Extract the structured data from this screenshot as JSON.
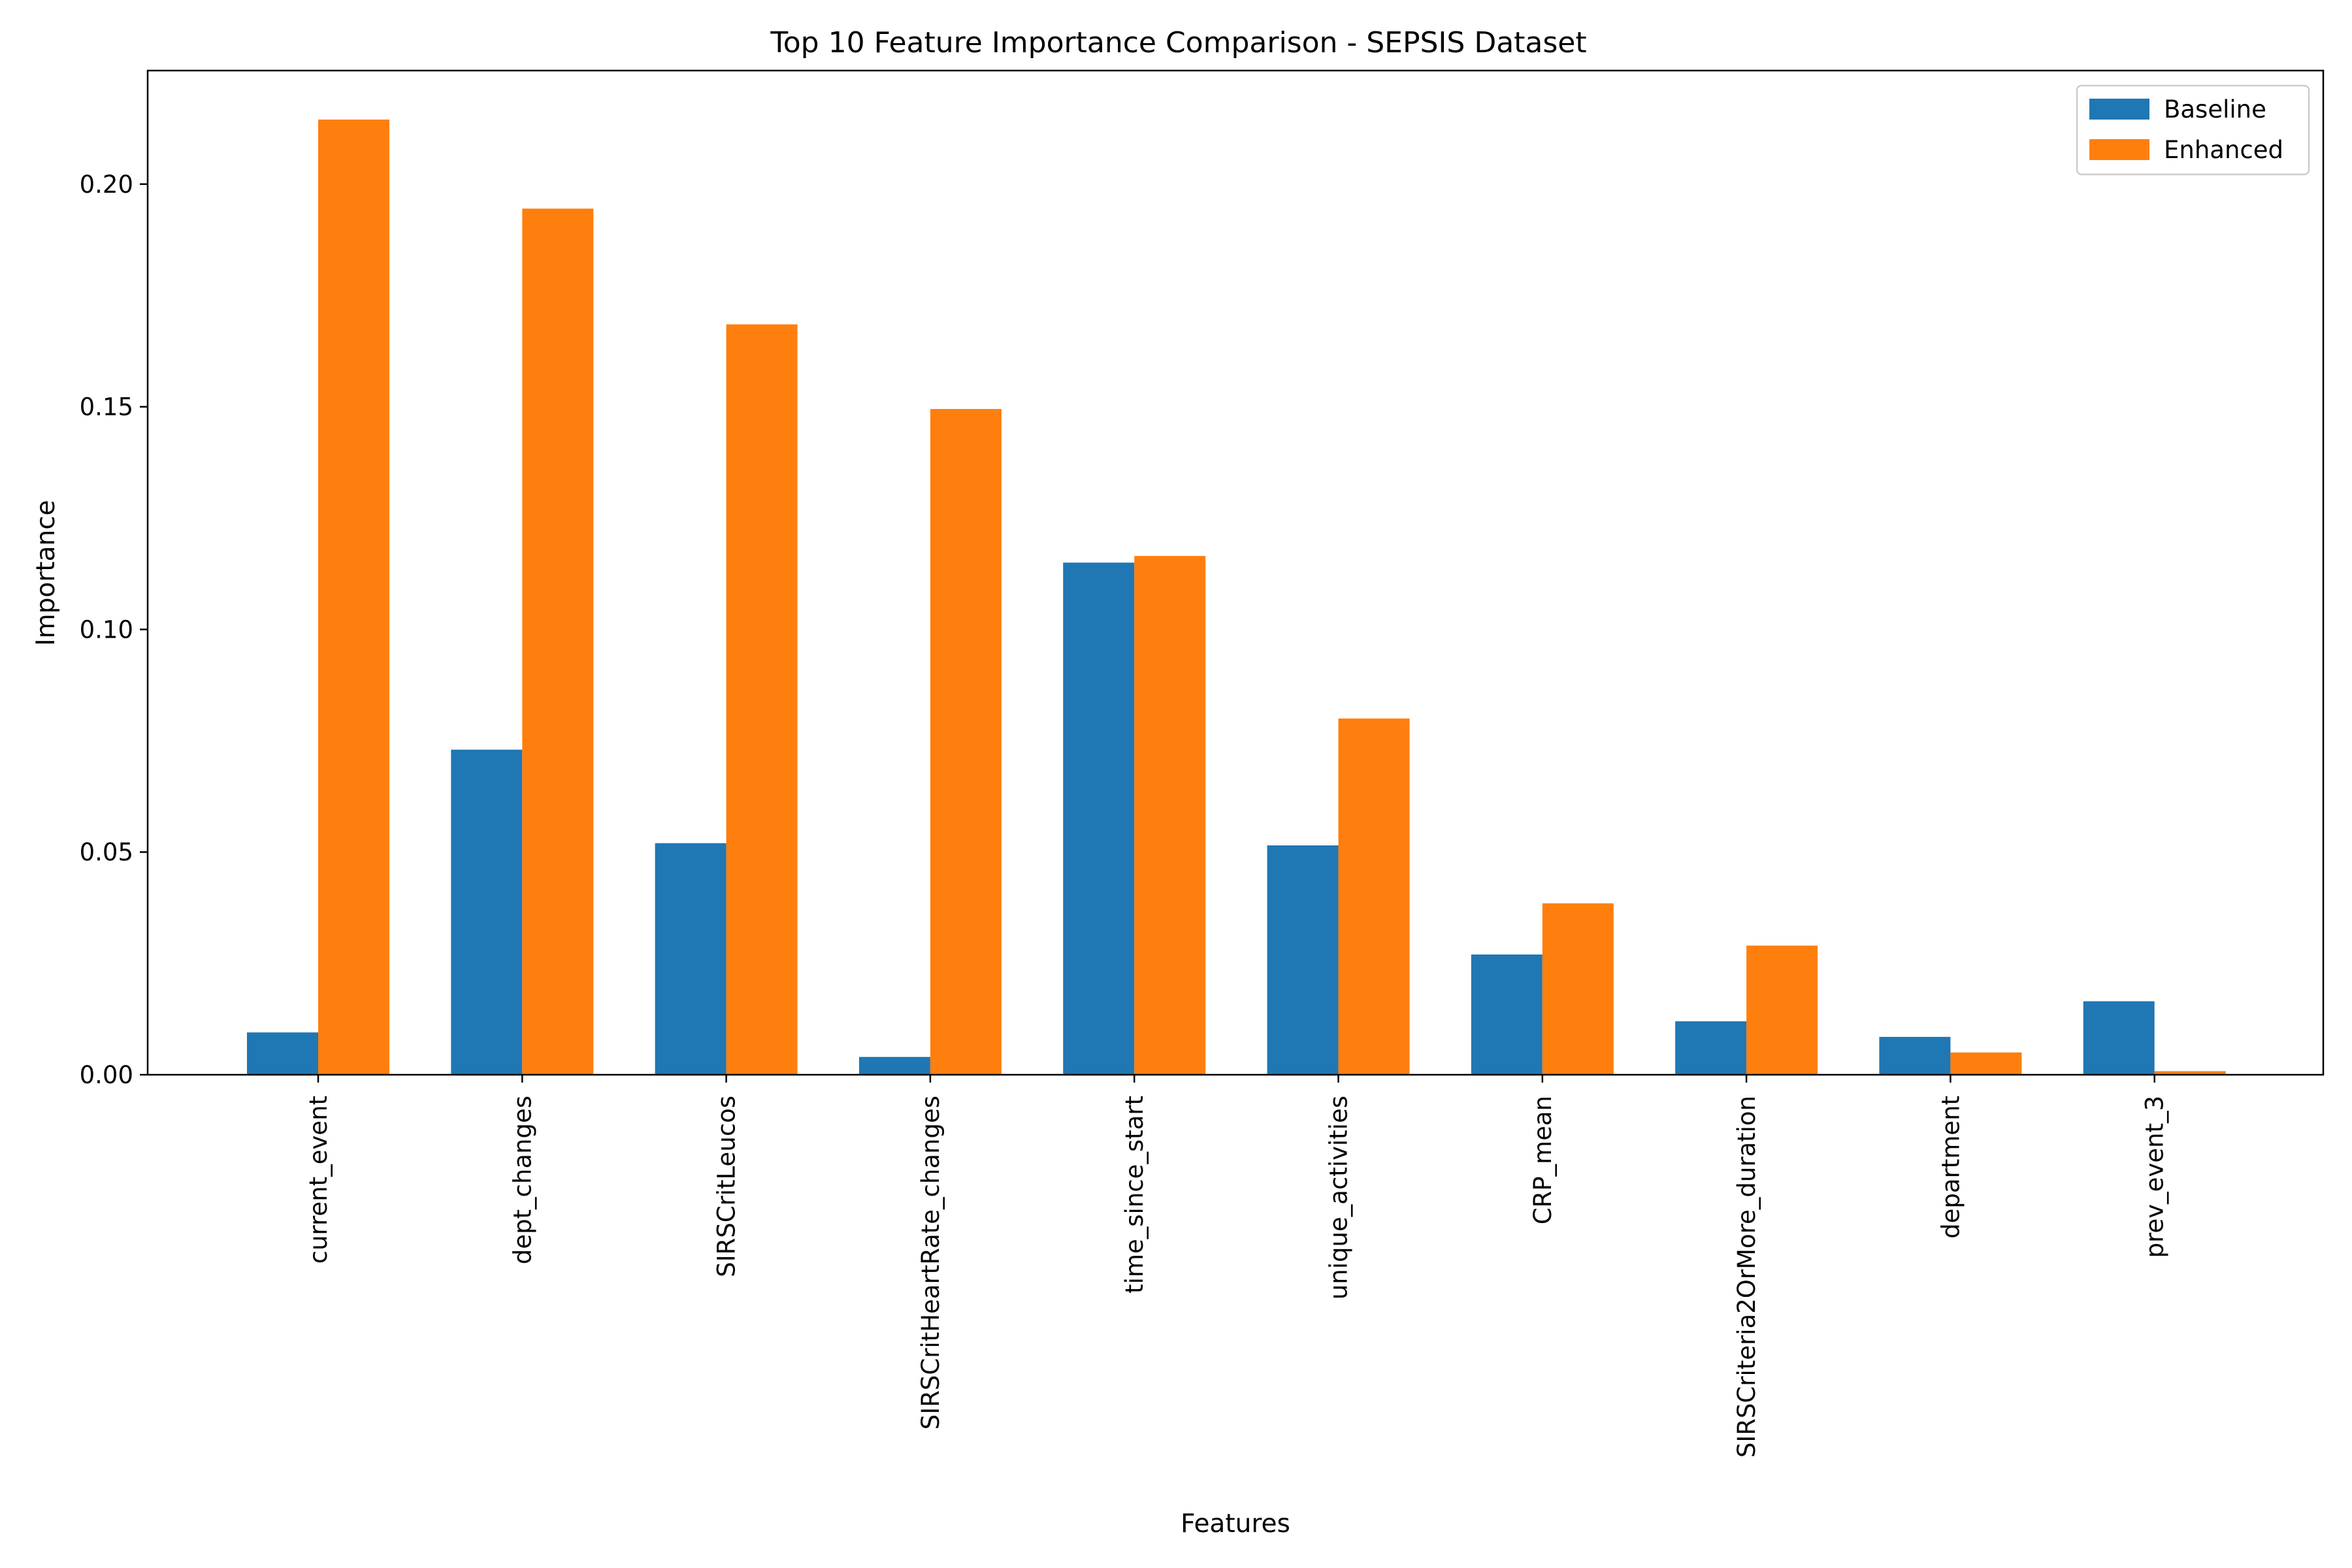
{
  "chart_data": {
    "type": "bar",
    "title": "Top 10 Feature Importance Comparison - SEPSIS Dataset",
    "xlabel": "Features",
    "ylabel": "Importance",
    "categories": [
      "current_event",
      "dept_changes",
      "SIRSCritLeucos",
      "SIRSCritHeartRate_changes",
      "time_since_start",
      "unique_activities",
      "CRP_mean",
      "SIRSCriteria2OrMore_duration",
      "department",
      "prev_event_3"
    ],
    "series": [
      {
        "name": "Baseline",
        "color": "#1f77b4",
        "values": [
          0.0095,
          0.073,
          0.052,
          0.004,
          0.115,
          0.0515,
          0.027,
          0.012,
          0.0085,
          0.0165
        ]
      },
      {
        "name": "Enhanced",
        "color": "#ff7f0e",
        "values": [
          0.2145,
          0.1945,
          0.1685,
          0.1495,
          0.1165,
          0.08,
          0.0385,
          0.029,
          0.005,
          0.0008
        ]
      }
    ],
    "ylim": [
      0,
      0.2255
    ],
    "yticks": [
      0.0,
      0.05,
      0.1,
      0.15,
      0.2
    ],
    "ytick_labels": [
      "0.00",
      "0.05",
      "0.10",
      "0.15",
      "0.20"
    ],
    "grid": false,
    "legend_position": "top-right"
  }
}
